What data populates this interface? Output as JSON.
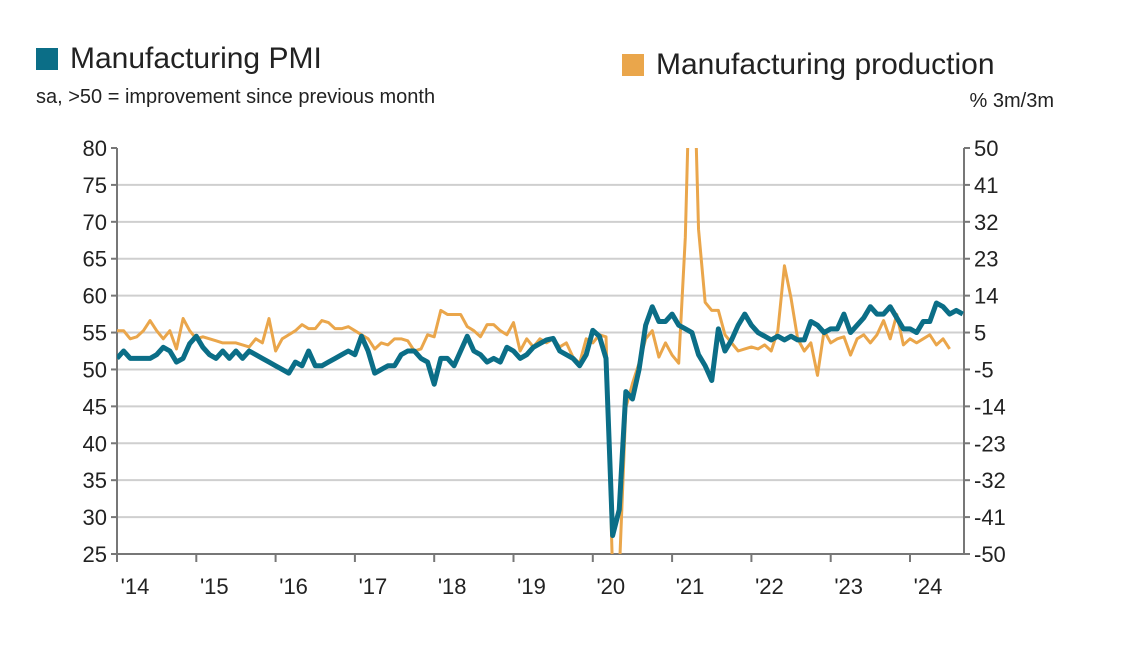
{
  "chart_data": {
    "type": "line",
    "legend_placement": "top",
    "grid": true,
    "colors": {
      "pmi": "#0b6e87",
      "production": "#eaa64b"
    },
    "series": [
      {
        "name": "Manufacturing PMI",
        "axis": "left",
        "subtitle": "sa, >50 = improvement since previous month",
        "values": [
          51.5,
          52.5,
          51.5,
          51.5,
          51.5,
          51.5,
          52,
          53,
          52.5,
          51,
          51.5,
          53.5,
          54.5,
          53,
          52,
          51.5,
          52.5,
          51.5,
          52.5,
          51.5,
          52.5,
          52,
          51.5,
          51,
          50.5,
          50,
          49.5,
          51,
          50.5,
          52.5,
          50.5,
          50.5,
          51,
          51.5,
          52,
          52.5,
          52,
          54.5,
          52.5,
          49.5,
          50,
          50.5,
          50.5,
          52,
          52.5,
          52.5,
          51.5,
          51,
          48,
          51.5,
          51.5,
          50.5,
          52.5,
          54.5,
          52.5,
          52,
          51,
          51.5,
          51,
          53,
          52.5,
          51.5,
          52,
          53,
          53.5,
          54,
          54.2,
          52.5,
          52,
          51.5,
          50.5,
          52,
          55.3,
          54.5,
          51.5,
          27.5,
          31,
          47,
          46,
          50,
          56,
          58.5,
          56.5,
          56.5,
          57.5,
          56,
          55.5,
          55,
          52,
          50.5,
          48.5,
          55.5,
          52.5,
          54,
          56,
          57.5,
          56,
          55,
          54.5,
          54,
          54.5,
          54,
          54.5,
          54,
          54,
          56.5,
          56,
          55,
          55.5,
          55.5,
          57.5,
          55,
          56,
          57,
          58.5,
          57.5,
          57.5,
          58.5,
          57,
          55.5,
          55.5,
          55,
          56.5,
          56.5,
          59,
          58.5,
          57.5,
          58,
          57.5
        ]
      },
      {
        "name": "Manufacturing production",
        "axis": "right",
        "subtitle": "% 3m/3m",
        "values": [
          5,
          5,
          3,
          3.5,
          5,
          7.5,
          5,
          3,
          5,
          0.5,
          8,
          5,
          3,
          3.5,
          3,
          2.5,
          2,
          2,
          2,
          1.5,
          1,
          3,
          2,
          8,
          0,
          3,
          4,
          5,
          6.5,
          5.5,
          5.5,
          7.5,
          7,
          5.5,
          5.5,
          6,
          5,
          4,
          3,
          0.5,
          2,
          1.5,
          3,
          3,
          2.5,
          0,
          0.5,
          4,
          3.5,
          10,
          9,
          9,
          9,
          6,
          5,
          3.5,
          6.5,
          6.5,
          5,
          4,
          7,
          0,
          3,
          1,
          3,
          2,
          3,
          1,
          2,
          -1.5,
          -3,
          3,
          2,
          4,
          3.5,
          -55,
          -55,
          -14,
          -8,
          -3,
          3,
          5,
          -1.5,
          2,
          -1,
          -3,
          28,
          90,
          30,
          12,
          10,
          10,
          4,
          2,
          0,
          0.5,
          1,
          0.5,
          1.5,
          0,
          5,
          21,
          13,
          3,
          0,
          2,
          -6,
          5,
          2,
          3,
          3.5,
          -1,
          3,
          4,
          2,
          4,
          7.5,
          3,
          9,
          1.5,
          3,
          2,
          3,
          4,
          1.5,
          3,
          0.5,
          null,
          null
        ]
      }
    ],
    "x_range": [
      "2014-01",
      "2024-09"
    ],
    "x_ticks": [
      "'14",
      "'15",
      "'16",
      "'17",
      "'18",
      "'19",
      "'20",
      "'21",
      "'22",
      "'23",
      "'24"
    ],
    "y_left": {
      "lim": [
        25,
        80
      ],
      "ticks": [
        "80",
        "75",
        "70",
        "65",
        "60",
        "55",
        "50",
        "45",
        "40",
        "35",
        "30",
        "25"
      ]
    },
    "y_right": {
      "lim": [
        -50,
        50
      ],
      "ticks": [
        "50",
        "41",
        "32",
        "23",
        "14",
        "5",
        "-5",
        "-14",
        "-23",
        "-32",
        "-41",
        "-50"
      ]
    }
  }
}
